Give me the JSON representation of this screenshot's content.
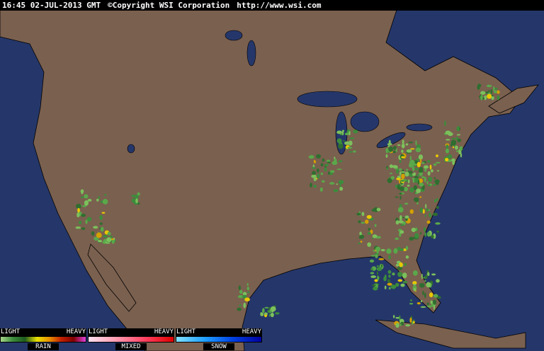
{
  "header": {
    "timestamp": "16:45 02-JUL-2013 GMT",
    "copyright": "©Copyright WSI Corporation",
    "url": "http://www.wsi.com"
  },
  "legend": [
    {
      "light": "LIGHT",
      "heavy": "HEAVY",
      "name": "RAIN"
    },
    {
      "light": "LIGHT",
      "heavy": "HEAVY",
      "name": "MIXED"
    },
    {
      "light": "LIGHT",
      "heavy": "HEAVY",
      "name": "SNOW"
    }
  ]
}
